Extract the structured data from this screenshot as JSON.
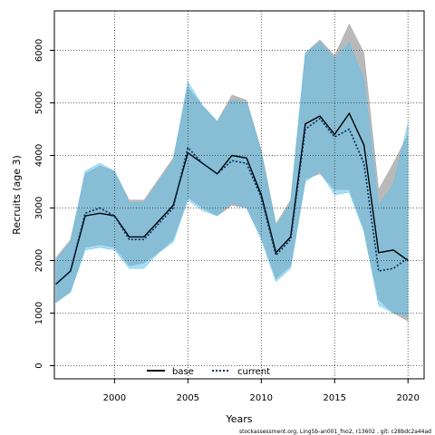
{
  "chart_data": {
    "type": "line",
    "xlabel": "Years",
    "ylabel": "Recruits (age 3)",
    "xlim": [
      1995.9,
      2021.1
    ],
    "ylim": [
      -250,
      6750
    ],
    "x_ticks": [
      2000,
      2005,
      2010,
      2015,
      2020
    ],
    "y_ticks": [
      0,
      1000,
      2000,
      3000,
      4000,
      5000,
      6000
    ],
    "grid": true,
    "legend_position": "bottom-center",
    "x": [
      1996,
      1997,
      1998,
      1999,
      2000,
      2001,
      2002,
      2003,
      2004,
      2005,
      2006,
      2007,
      2008,
      2009,
      2010,
      2011,
      2012,
      2013,
      2014,
      2015,
      2016,
      2017,
      2018,
      2019,
      2020
    ],
    "series": [
      {
        "name": "base",
        "color": "#000000",
        "band_color": "#a8a8a8",
        "line_style": "solid",
        "values": [
          1550,
          1800,
          2850,
          2900,
          2850,
          2450,
          2450,
          2750,
          3050,
          4050,
          3850,
          3650,
          4000,
          3950,
          3250,
          2150,
          2450,
          4600,
          4750,
          4400,
          4800,
          4200,
          2150,
          2200,
          2000
        ],
        "upper": [
          2050,
          2400,
          3650,
          3800,
          3700,
          3150,
          3150,
          3550,
          3950,
          5300,
          4950,
          4650,
          5150,
          5050,
          4100,
          2700,
          3150,
          5950,
          6200,
          5900,
          6500,
          5950,
          3350,
          3850,
          4400
        ],
        "lower": [
          1200,
          1400,
          2250,
          2300,
          2250,
          1900,
          1950,
          2150,
          2400,
          3200,
          3000,
          2850,
          3050,
          3000,
          2450,
          1650,
          1900,
          3550,
          3650,
          3350,
          3350,
          2600,
          1250,
          1000,
          850
        ]
      },
      {
        "name": "current",
        "color": "#00285a",
        "band_color": "#5fc3ec",
        "line_style": "dotted",
        "values": [
          1550,
          1800,
          2900,
          3000,
          2850,
          2400,
          2400,
          2700,
          3000,
          4150,
          3850,
          3650,
          3900,
          3850,
          3200,
          2100,
          2400,
          4500,
          4700,
          4350,
          4500,
          3850,
          1800,
          1850,
          2050
        ],
        "upper": [
          2000,
          2350,
          3700,
          3850,
          3700,
          3100,
          3100,
          3500,
          3900,
          5400,
          4950,
          4650,
          5050,
          5000,
          4050,
          2650,
          3100,
          5950,
          6150,
          5850,
          6150,
          5450,
          3050,
          3450,
          4600
        ],
        "lower": [
          1200,
          1400,
          2200,
          2250,
          2200,
          1850,
          1850,
          2150,
          2350,
          3150,
          2950,
          2850,
          3100,
          3000,
          2400,
          1600,
          1850,
          3500,
          3700,
          3250,
          3300,
          2550,
          1150,
          1000,
          950
        ]
      }
    ]
  },
  "footer_text": "stockassessment.org,  Ling5b-an001_fno2,  r13602 ,  git:  c28bdc2a44ad"
}
